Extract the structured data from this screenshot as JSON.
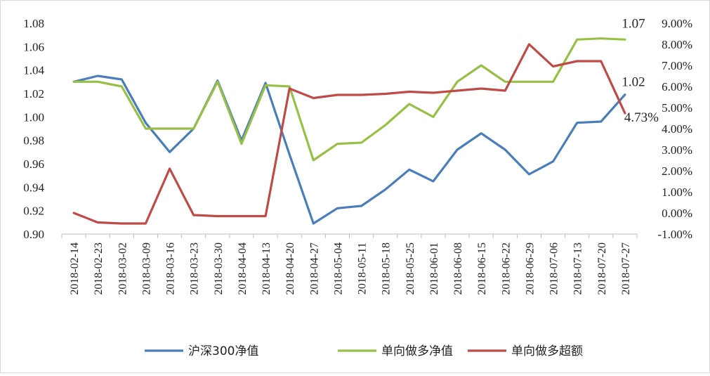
{
  "chart_data": {
    "type": "line",
    "title": "",
    "xlabel": "",
    "ylabel": "",
    "categories": [
      "2018-02-14",
      "2018-02-23",
      "2018-03-02",
      "2018-03-09",
      "2018-03-16",
      "2018-03-23",
      "2018-03-30",
      "2018-04-04",
      "2018-04-13",
      "2018-04-20",
      "2018-04-27",
      "2018-05-04",
      "2018-05-11",
      "2018-05-18",
      "2018-05-25",
      "2018-06-01",
      "2018-06-08",
      "2018-06-15",
      "2018-06-22",
      "2018-06-29",
      "2018-07-06",
      "2018-07-13",
      "2018-07-20",
      "2018-07-27"
    ],
    "left_axis": {
      "ylim": [
        0.9,
        1.08
      ],
      "ticks": [
        "0.90",
        "0.92",
        "0.94",
        "0.96",
        "0.98",
        "1.00",
        "1.02",
        "1.04",
        "1.06",
        "1.08"
      ]
    },
    "right_axis": {
      "ylim": [
        -1.0,
        9.0
      ],
      "unit": "%",
      "ticks": [
        "-1.00%",
        "0.00%",
        "1.00%",
        "2.00%",
        "3.00%",
        "4.00%",
        "5.00%",
        "6.00%",
        "7.00%",
        "8.00%",
        "9.00%"
      ]
    },
    "series": [
      {
        "name": "沪深300净值",
        "axis": "left",
        "color": "#4a7ebb",
        "values": [
          1.03,
          1.035,
          1.032,
          0.995,
          0.97,
          0.99,
          1.031,
          0.98,
          1.029,
          0.968,
          0.909,
          0.922,
          0.924,
          0.938,
          0.955,
          0.945,
          0.972,
          0.986,
          0.972,
          0.951,
          0.962,
          0.995,
          0.996,
          1.019
        ]
      },
      {
        "name": "单向做多净值",
        "axis": "left",
        "color": "#98c046",
        "values": [
          1.03,
          1.03,
          1.026,
          0.99,
          0.99,
          0.99,
          1.03,
          0.977,
          1.027,
          1.026,
          0.963,
          0.977,
          0.978,
          0.993,
          1.011,
          1.0,
          1.03,
          1.044,
          1.03,
          1.03,
          1.03,
          1.066,
          1.067,
          1.066
        ]
      },
      {
        "name": "单向做多超额",
        "axis": "right",
        "color": "#be4b48",
        "values": [
          0.0,
          -0.45,
          -0.5,
          -0.5,
          2.1,
          -0.1,
          -0.15,
          -0.15,
          -0.15,
          5.9,
          5.45,
          5.6,
          5.6,
          5.65,
          5.75,
          5.7,
          5.8,
          5.9,
          5.8,
          8.0,
          6.95,
          7.2,
          7.2,
          4.73
        ]
      }
    ],
    "annotations": [
      {
        "text": "1.07",
        "series": 1,
        "index": 23
      },
      {
        "text": "1.02",
        "series": 0,
        "index": 23
      },
      {
        "text": "4.73%",
        "series": 2,
        "index": 23
      }
    ],
    "legend": {
      "position": "bottom",
      "entries": [
        "沪深300净值",
        "单向做多净值",
        "单向做多超额"
      ]
    },
    "grid": false
  }
}
